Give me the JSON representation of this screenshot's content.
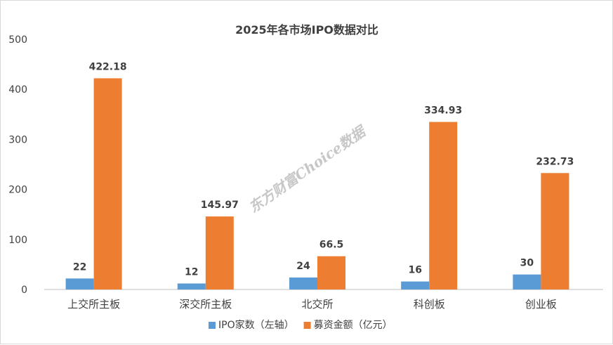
{
  "chart_data": {
    "type": "bar",
    "title": "2025年各市场IPO数据对比",
    "categories": [
      "上交所主板",
      "深交所主板",
      "北交所",
      "科创板",
      "创业板"
    ],
    "series": [
      {
        "name": "IPO家数（左轴）",
        "values": [
          22,
          12,
          24,
          16,
          30
        ],
        "labels": [
          "22",
          "12",
          "24",
          "16",
          "30"
        ],
        "color": "#5B9BD5"
      },
      {
        "name": "募资金额（亿元）",
        "values": [
          422.18,
          145.97,
          66.5,
          334.93,
          232.73
        ],
        "labels": [
          "422.18",
          "145.97",
          "66.5",
          "334.93",
          "232.73"
        ],
        "color": "#ED7D31"
      }
    ],
    "ylim": [
      0,
      500
    ],
    "yticks": [
      "0",
      "100",
      "200",
      "300",
      "400",
      "500"
    ],
    "grid": false,
    "legend_position": "bottom"
  },
  "watermark": "东方财富Choice数据",
  "colors": {
    "axis": "#bfbfbf",
    "text": "#404040"
  }
}
